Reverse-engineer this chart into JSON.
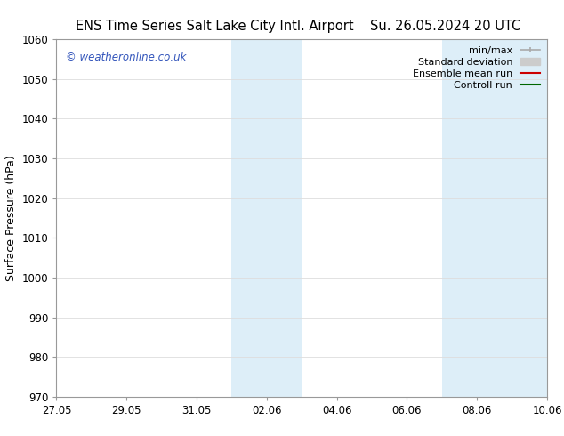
{
  "title_left": "ENS Time Series Salt Lake City Intl. Airport",
  "title_right": "Su. 26.05.2024 20 UTC",
  "ylabel": "Surface Pressure (hPa)",
  "ylim": [
    970,
    1060
  ],
  "yticks": [
    970,
    980,
    990,
    1000,
    1010,
    1020,
    1030,
    1040,
    1050,
    1060
  ],
  "xlim": [
    0,
    14
  ],
  "xtick_labels": [
    "27.05",
    "29.05",
    "31.05",
    "02.06",
    "04.06",
    "06.06",
    "08.06",
    "10.06"
  ],
  "xtick_positions": [
    0,
    2,
    4,
    6,
    8,
    10,
    12,
    14
  ],
  "shaded_bands": [
    {
      "start": 5.0,
      "end": 7.0
    },
    {
      "start": 11.0,
      "end": 14.0
    }
  ],
  "shaded_color": "#ddeef8",
  "watermark_text": "© weatheronline.co.uk",
  "watermark_color": "#3355bb",
  "legend_entries": [
    {
      "label": "min/max",
      "color": "#aaaaaa",
      "lw": 1.2
    },
    {
      "label": "Standard deviation",
      "color": "#cccccc",
      "lw": 7
    },
    {
      "label": "Ensemble mean run",
      "color": "#cc0000",
      "lw": 1.5
    },
    {
      "label": "Controll run",
      "color": "#006600",
      "lw": 1.5
    }
  ],
  "bg_color": "#ffffff",
  "spine_color": "#999999",
  "title_fontsize": 10.5,
  "watermark_fontsize": 8.5,
  "ylabel_fontsize": 9,
  "tick_fontsize": 8.5,
  "legend_fontsize": 8
}
